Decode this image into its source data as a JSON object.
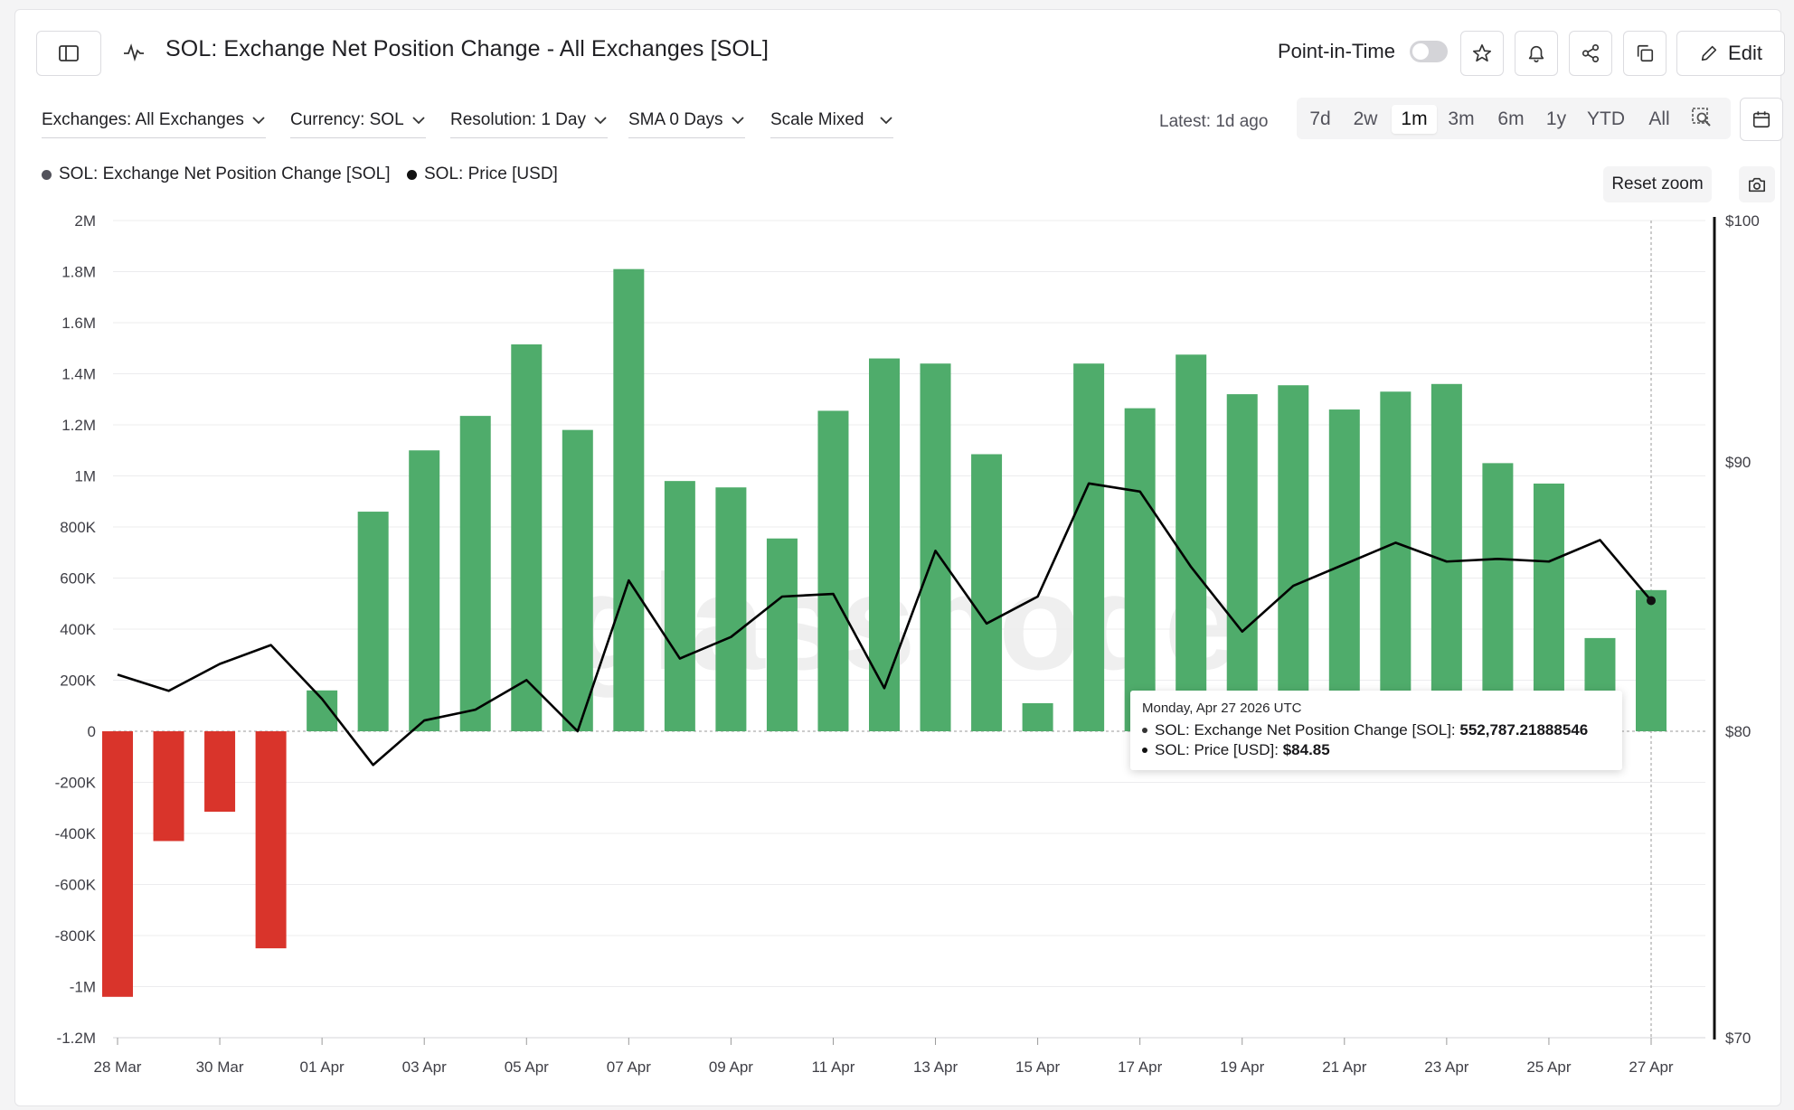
{
  "header": {
    "title": "SOL: Exchange Net Position Change - All Exchanges [SOL]",
    "point_in_time_label": "Point-in-Time",
    "edit_label": "Edit"
  },
  "filters": {
    "exchanges": "Exchanges: All Exchanges",
    "currency": "Currency: SOL",
    "resolution": "Resolution: 1 Day",
    "sma": "SMA 0 Days",
    "scale": "Scale Mixed",
    "latest": "Latest: 1d ago"
  },
  "ranges": [
    "7d",
    "2w",
    "1m",
    "3m",
    "6m",
    "1y",
    "YTD",
    "All"
  ],
  "active_range": "1m",
  "legend": {
    "series1": "SOL: Exchange Net Position Change [SOL]",
    "series2": "SOL: Price [USD]",
    "reset_zoom": "Reset zoom"
  },
  "watermark": "glassnode",
  "tooltip": {
    "date": "Monday, Apr 27 2026 UTC",
    "row1_label": "SOL: Exchange Net Position Change [SOL]: ",
    "row1_value": "552,787.21888546",
    "row2_label": "SOL: Price [USD]: ",
    "row2_value": "$84.85"
  },
  "colors": {
    "positive": "#4fac6b",
    "negative": "#d9342b",
    "price_line": "#000000"
  },
  "chart_data": {
    "type": "bar",
    "title": "SOL: Exchange Net Position Change - All Exchanges [SOL]",
    "categories": [
      "28 Mar",
      "29 Mar",
      "30 Mar",
      "31 Mar",
      "01 Apr",
      "02 Apr",
      "03 Apr",
      "04 Apr",
      "05 Apr",
      "06 Apr",
      "07 Apr",
      "08 Apr",
      "09 Apr",
      "10 Apr",
      "11 Apr",
      "12 Apr",
      "13 Apr",
      "14 Apr",
      "15 Apr",
      "16 Apr",
      "17 Apr",
      "18 Apr",
      "19 Apr",
      "20 Apr",
      "21 Apr",
      "22 Apr",
      "23 Apr",
      "24 Apr",
      "25 Apr",
      "26 Apr",
      "27 Apr"
    ],
    "x_tick_labels": [
      "28 Mar",
      "30 Mar",
      "01 Apr",
      "03 Apr",
      "05 Apr",
      "07 Apr",
      "09 Apr",
      "11 Apr",
      "13 Apr",
      "15 Apr",
      "17 Apr",
      "19 Apr",
      "21 Apr",
      "23 Apr",
      "25 Apr",
      "27 Apr"
    ],
    "series": [
      {
        "name": "SOL: Exchange Net Position Change [SOL]",
        "axis": "left",
        "type": "bar",
        "values": [
          -1040000,
          -430000,
          -315000,
          -850000,
          160000,
          860000,
          1100000,
          1235000,
          1515000,
          1180000,
          1810000,
          980000,
          955000,
          755000,
          1255000,
          1460000,
          1440000,
          1085000,
          110000,
          1440000,
          1265000,
          1475000,
          1320000,
          1355000,
          1260000,
          1330000,
          1360000,
          1050000,
          970000,
          365000,
          552787.22
        ]
      },
      {
        "name": "SOL: Price [USD]",
        "axis": "right",
        "type": "line",
        "values": [
          82.1,
          81.5,
          82.5,
          83.2,
          81.2,
          78.9,
          80.4,
          80.8,
          81.9,
          80.0,
          85.6,
          82.7,
          83.5,
          85.0,
          85.1,
          81.6,
          86.7,
          84.0,
          85.0,
          89.2,
          88.9,
          86.1,
          83.7,
          85.4,
          86.2,
          87.0,
          86.3,
          86.4,
          86.3,
          87.1,
          84.85
        ]
      }
    ],
    "y_left": {
      "ylim": [
        -1200000,
        2000000
      ],
      "ticks": [
        2000000,
        1800000,
        1600000,
        1400000,
        1200000,
        1000000,
        800000,
        600000,
        400000,
        200000,
        0,
        -200000,
        -400000,
        -600000,
        -800000,
        -1000000,
        -1200000
      ],
      "tick_labels": [
        "2M",
        "1.8M",
        "1.6M",
        "1.4M",
        "1.2M",
        "1M",
        "800K",
        "600K",
        "400K",
        "200K",
        "0",
        "-200K",
        "-400K",
        "-600K",
        "-800K",
        "-1M",
        "-1.2M"
      ]
    },
    "y_right": {
      "scale": "mixed",
      "ticks": [
        100,
        90,
        80,
        70
      ],
      "tick_labels": [
        "$100",
        "$90",
        "$80",
        "$70"
      ]
    },
    "grid": true,
    "legend_position": "top-left"
  }
}
